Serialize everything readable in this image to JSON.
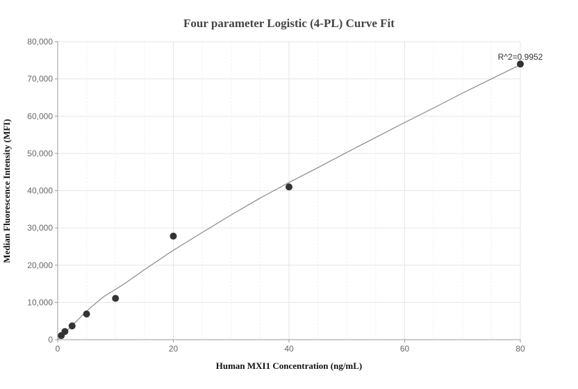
{
  "chart_data": {
    "type": "scatter",
    "title": "Four parameter Logistic (4-PL) Curve Fit",
    "xlabel": "Human MXI1 Concentration (ng/mL)",
    "ylabel": "Median Fluorescence Intensity (MFI)",
    "xlim": [
      0,
      80
    ],
    "ylim": [
      0,
      80000
    ],
    "x_ticks": [
      0,
      20,
      40,
      60,
      80
    ],
    "y_ticks": [
      0,
      10000,
      20000,
      30000,
      40000,
      50000,
      60000,
      70000,
      80000
    ],
    "x_tick_labels": [
      "0",
      "20",
      "40",
      "60",
      "80"
    ],
    "y_tick_labels": [
      "0",
      "10,000",
      "20,000",
      "30,000",
      "40,000",
      "50,000",
      "60,000",
      "70,000",
      "80,000"
    ],
    "grid": true,
    "points": {
      "x": [
        0.625,
        1.25,
        2.5,
        5,
        10,
        20,
        40,
        80
      ],
      "y": [
        1100,
        2200,
        3700,
        6900,
        11100,
        27800,
        41000,
        74000
      ]
    },
    "fit_curve": {
      "x": [
        0,
        1,
        2,
        3,
        4,
        5,
        6,
        8,
        10,
        12,
        15,
        20,
        25,
        30,
        35,
        40,
        45,
        50,
        55,
        60,
        65,
        70,
        75,
        80
      ],
      "y": [
        0,
        1500,
        3000,
        4600,
        6100,
        7600,
        9000,
        11600,
        13500,
        15500,
        18800,
        24000,
        28800,
        33500,
        38000,
        42200,
        46200,
        50300,
        54300,
        58300,
        62200,
        66200,
        70000,
        73800
      ]
    },
    "annotation": "R^2=0.9952",
    "colors": {
      "points": "#333333",
      "curve": "#888888",
      "grid": "#e6e6e6",
      "axis": "#999999"
    }
  }
}
